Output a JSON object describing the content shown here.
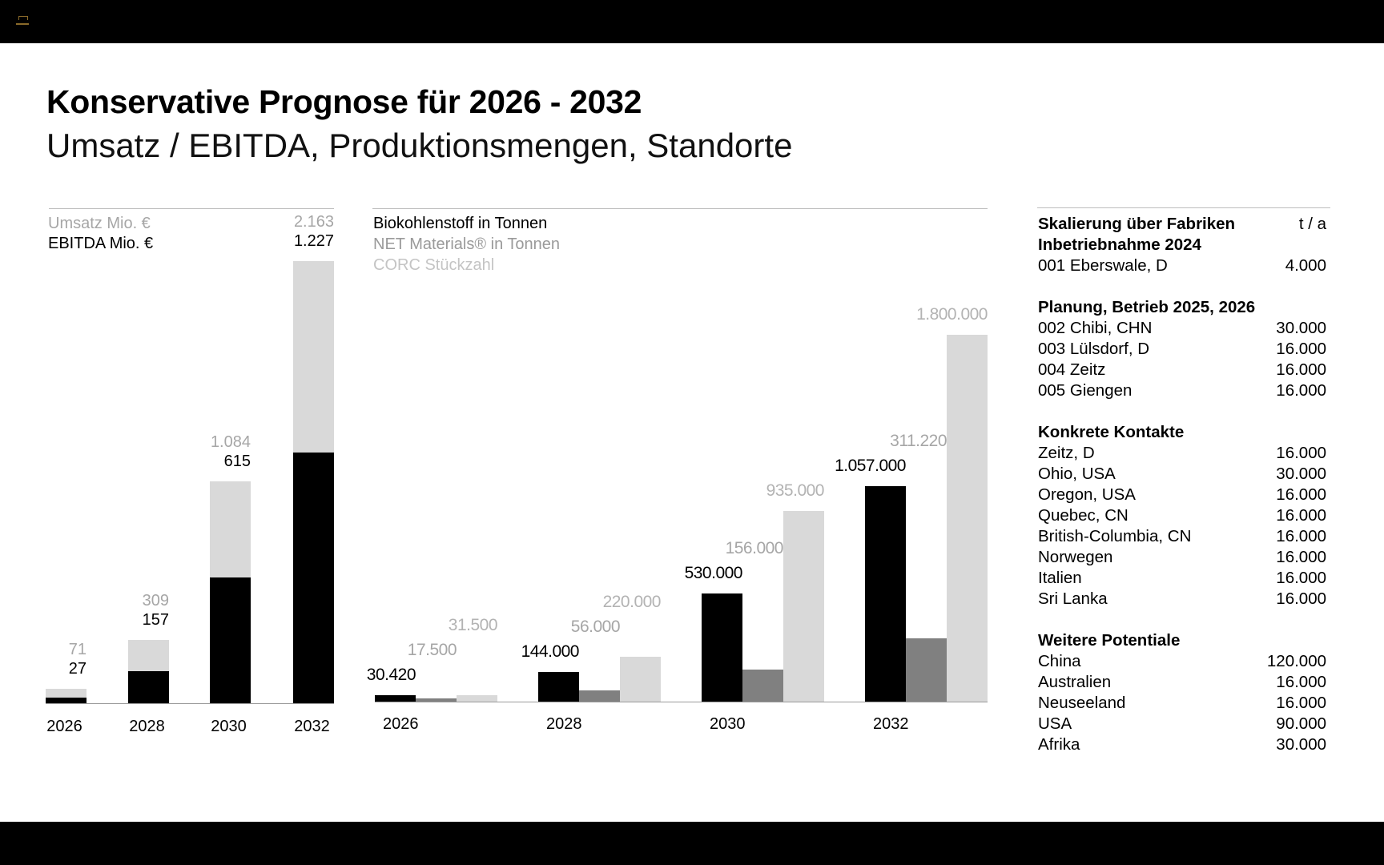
{
  "header": {
    "title": "Konservative Prognose für 2026 - 2032",
    "subtitle": "Umsatz / EBITDA, Produktionsmengen, Standorte"
  },
  "colors": {
    "black": "#000000",
    "mid_gray": "#808080",
    "light_gray": "#d9d9d9",
    "label_gray": "#a6a6a6",
    "legend_light": "#c4c4c4"
  },
  "chart_data": [
    {
      "type": "bar",
      "stacked": "overlay",
      "title": "",
      "categories": [
        "2026",
        "2028",
        "2030",
        "2032"
      ],
      "series": [
        {
          "name": "Umsatz Mio. €",
          "values": [
            71,
            309,
            1084,
            2163
          ],
          "labels": [
            "71",
            "309",
            "1.084",
            "2.163"
          ],
          "color": "#d9d9d9",
          "label_color": "#a6a6a6"
        },
        {
          "name": "EBITDA Mio. €",
          "values": [
            27,
            157,
            615,
            1227
          ],
          "labels": [
            "27",
            "157",
            "615",
            "1.227"
          ],
          "color": "#000000",
          "label_color": "#000000"
        }
      ],
      "ylim": [
        0,
        2163
      ],
      "legend": "top-left",
      "grid": false
    },
    {
      "type": "bar",
      "title": "",
      "categories": [
        "2026",
        "2028",
        "2030",
        "2032"
      ],
      "series": [
        {
          "name": "Biokohlenstoff in Tonnen",
          "values": [
            30420,
            144000,
            530000,
            1057000
          ],
          "labels": [
            "30.420",
            "144.000",
            "530.000",
            "1.057.000"
          ],
          "color": "#000000",
          "label_color": "#000000",
          "legend_color": "#000000"
        },
        {
          "name": "NET Materials® in Tonnen",
          "values": [
            17500,
            56000,
            156000,
            311220
          ],
          "labels": [
            "17.500",
            "56.000",
            "156.000",
            "311.220"
          ],
          "color": "#808080",
          "label_color": "#a6a6a6",
          "legend_color": "#9a9a9a"
        },
        {
          "name": "CORC Stückzahl",
          "values": [
            31500,
            220000,
            935000,
            1800000
          ],
          "labels": [
            "31.500",
            "220.000",
            "935.000",
            "1.800.000"
          ],
          "color": "#d9d9d9",
          "label_color": "#b3b3b3",
          "legend_color": "#c4c4c4"
        }
      ],
      "ylim": [
        0,
        1800000
      ],
      "legend": "top-left",
      "grid": false
    }
  ],
  "table": {
    "unit_header": "t / a",
    "sections": [
      {
        "title": [
          "Skalierung über Fabriken",
          "Inbetriebnahme 2024"
        ],
        "rows": [
          {
            "name": "001 Eberswale, D",
            "value": "4.000"
          }
        ]
      },
      {
        "title": [
          "Planung, Betrieb 2025, 2026"
        ],
        "rows": [
          {
            "name": "002 Chibi, CHN",
            "value": "30.000"
          },
          {
            "name": "003 Lülsdorf, D",
            "value": "16.000"
          },
          {
            "name": "004 Zeitz",
            "value": "16.000"
          },
          {
            "name": "005 Giengen",
            "value": "16.000"
          }
        ]
      },
      {
        "title": [
          "Konkrete Kontakte"
        ],
        "rows": [
          {
            "name": "Zeitz, D",
            "value": "16.000"
          },
          {
            "name": "Ohio, USA",
            "value": "30.000"
          },
          {
            "name": "Oregon, USA",
            "value": "16.000"
          },
          {
            "name": "Quebec, CN",
            "value": "16.000"
          },
          {
            "name": "British-Columbia, CN",
            "value": "16.000"
          },
          {
            "name": "Norwegen",
            "value": "16.000"
          },
          {
            "name": "Italien",
            "value": "16.000"
          },
          {
            "name": "Sri Lanka",
            "value": "16.000"
          }
        ]
      },
      {
        "title": [
          "Weitere Potentiale"
        ],
        "rows": [
          {
            "name": "China",
            "value": "120.000"
          },
          {
            "name": "Australien",
            "value": "16.000"
          },
          {
            "name": "Neuseeland",
            "value": "16.000"
          },
          {
            "name": "USA",
            "value": "90.000"
          },
          {
            "name": "Afrika",
            "value": "30.000"
          }
        ]
      }
    ]
  }
}
